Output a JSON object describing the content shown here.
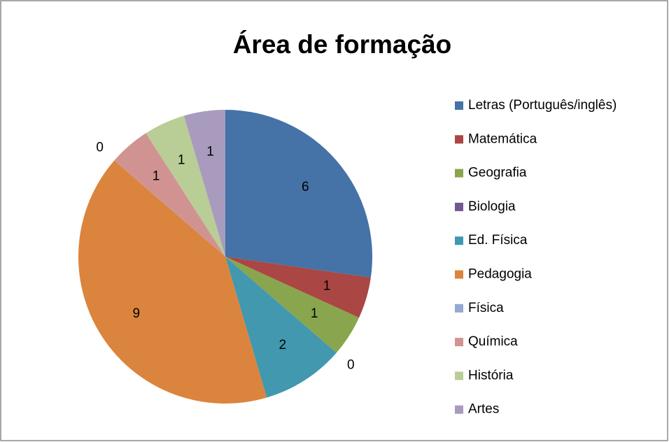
{
  "chart_data": {
    "type": "pie",
    "title": "Área de formação",
    "categories": [
      "Letras (Português/inglês)",
      "Matemática",
      "Geografia",
      "Biologia",
      "Ed. Física",
      "Pedagogia",
      "Física",
      "Química",
      "História",
      "Artes"
    ],
    "values": [
      6,
      1,
      1,
      0,
      2,
      9,
      0,
      1,
      1,
      1
    ],
    "colors": [
      "#4572a7",
      "#aa4643",
      "#89a54e",
      "#71588f",
      "#4198af",
      "#db843d",
      "#93a9cf",
      "#d19392",
      "#b9cd96",
      "#a99bbd"
    ],
    "legend": "right"
  }
}
